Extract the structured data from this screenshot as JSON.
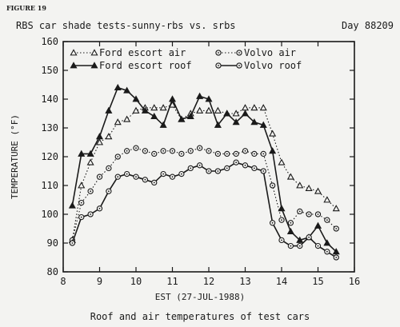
{
  "figure_label": "FIGURE 19",
  "day_label": "Day 88209",
  "caption": "Roof and air temperatures of test cars",
  "chart_data": {
    "type": "line",
    "title": "RBS car shade tests-sunny-rbs vs. srbs",
    "xlabel": "EST (27-JUL-1988)",
    "ylabel": "TEMPERATURE (°F)",
    "xlim": [
      8,
      16
    ],
    "ylim": [
      80,
      160
    ],
    "x_ticks": [
      8,
      9,
      10,
      11,
      12,
      13,
      14,
      15,
      16
    ],
    "y_ticks": [
      80,
      90,
      100,
      110,
      120,
      130,
      140,
      150,
      160
    ],
    "grid": false,
    "legend_position": "top-left",
    "x": [
      8.25,
      8.5,
      8.75,
      9,
      9.25,
      9.5,
      9.75,
      10,
      10.25,
      10.5,
      10.75,
      11,
      11.25,
      11.5,
      11.75,
      12,
      12.25,
      12.5,
      12.75,
      13,
      13.25,
      13.5,
      13.75,
      14,
      14.25,
      14.5,
      14.75,
      15,
      15.25,
      15.5
    ],
    "series": [
      {
        "name": "Ford escort air",
        "marker": "triangle-open",
        "dash": "dotted",
        "values": [
          91,
          110,
          118,
          125,
          127,
          132,
          133,
          136,
          137,
          137,
          137,
          138,
          133,
          135,
          136,
          136,
          136,
          135,
          135,
          137,
          137,
          137,
          128,
          118,
          113,
          110,
          109,
          108,
          105,
          102
        ]
      },
      {
        "name": "Ford escort roof",
        "marker": "triangle-filled",
        "dash": "solid",
        "values": [
          103,
          121,
          121,
          127,
          136,
          144,
          143,
          140,
          136,
          134,
          131,
          140,
          133,
          134,
          141,
          140,
          131,
          135,
          132,
          135,
          132,
          131,
          122,
          102,
          94,
          91,
          92,
          96,
          90,
          87
        ]
      },
      {
        "name": "Volvo air",
        "marker": "circle-dot",
        "dash": "dotted",
        "values": [
          91,
          104,
          108,
          113,
          116,
          120,
          122,
          123,
          122,
          121,
          122,
          122,
          121,
          122,
          123,
          122,
          121,
          121,
          121,
          122,
          121,
          121,
          110,
          98,
          97,
          101,
          100,
          100,
          98,
          95
        ]
      },
      {
        "name": "Volvo roof",
        "marker": "circle-dot",
        "dash": "solid",
        "values": [
          90,
          99,
          100,
          102,
          108,
          113,
          114,
          113,
          112,
          111,
          114,
          113,
          114,
          116,
          117,
          115,
          115,
          116,
          118,
          117,
          116,
          115,
          97,
          91,
          89,
          89,
          92,
          89,
          87,
          85
        ]
      }
    ]
  }
}
